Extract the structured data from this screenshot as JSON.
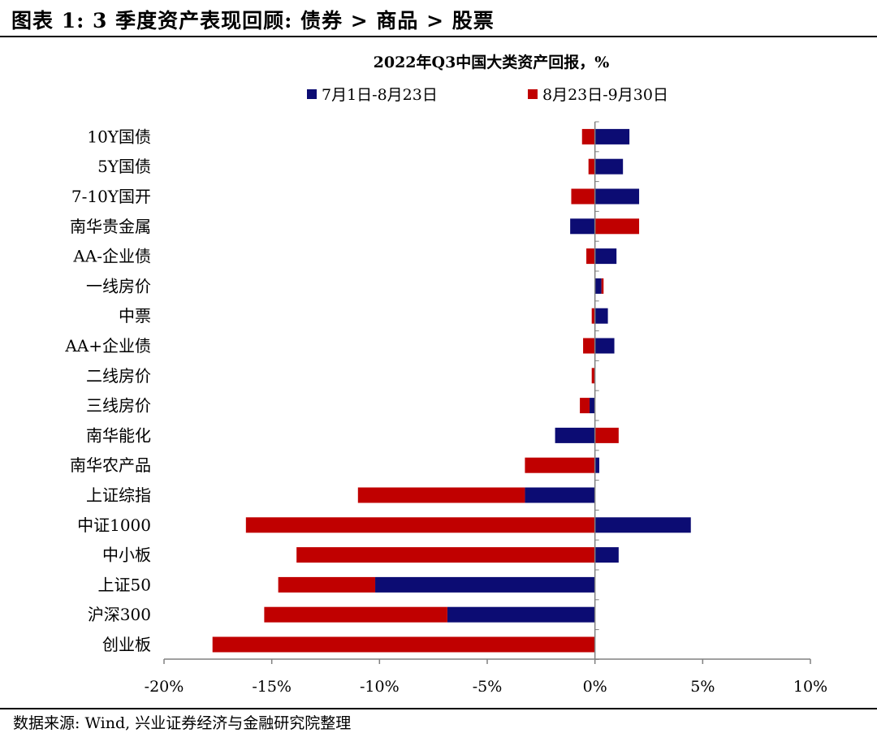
{
  "header": {
    "title": "图表 1:  3 季度资产表现回顾:  债券 > 商品 > 股票"
  },
  "footer": {
    "source": "数据来源:  Wind,  兴业证券经济与金融研究院整理"
  },
  "colors": {
    "series1": "#0c0c73",
    "series2": "#c00000",
    "axis": "#808080"
  },
  "chart_data": {
    "type": "bar",
    "orientation": "horizontal",
    "stacked": true,
    "title": "2022年Q3中国大类资产回报，%",
    "xlabel": "",
    "ylabel": "",
    "xlim": [
      -20,
      10
    ],
    "ticks": [
      -20,
      -15,
      -10,
      -5,
      0,
      5,
      10
    ],
    "tick_labels": [
      "-20%",
      "-15%",
      "-10%",
      "-5%",
      "0%",
      "5%",
      "10%"
    ],
    "legend_position": "top",
    "categories": [
      "10Y国债",
      "5Y国债",
      "7-10Y国开",
      "南华贵金属",
      "AA-企业债",
      "一线房价",
      "中票",
      "AA+企业债",
      "二线房价",
      "三线房价",
      "南华能化",
      "南华农产品",
      "上证综指",
      "中证1000",
      "中小板",
      "上证50",
      "沪深300",
      "创业板"
    ],
    "series": [
      {
        "name": "7月1日-8月23日",
        "values": [
          1.6,
          1.3,
          2.05,
          -1.15,
          1.0,
          0.3,
          0.6,
          0.9,
          0.0,
          -0.25,
          -1.85,
          0.2,
          -3.25,
          4.45,
          1.1,
          -10.2,
          -6.85,
          0.0
        ]
      },
      {
        "name": "8月23日-9月30日",
        "values": [
          -0.6,
          -0.3,
          -1.1,
          2.05,
          -0.4,
          0.1,
          -0.15,
          -0.55,
          -0.15,
          -0.45,
          1.1,
          -3.25,
          -7.75,
          -16.2,
          -13.85,
          -4.5,
          -8.5,
          -17.75
        ]
      }
    ]
  }
}
